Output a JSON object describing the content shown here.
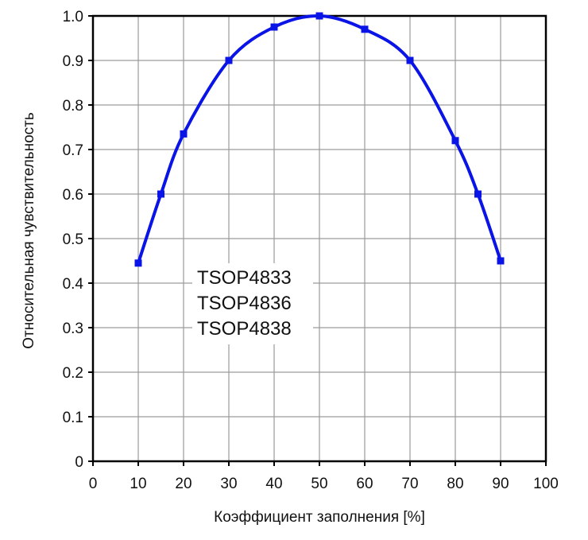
{
  "chart_data": {
    "type": "line",
    "xlabel": "Коэффициент заполнения [%]",
    "ylabel": "Относительная чувствительность",
    "xlim": [
      0,
      100
    ],
    "ylim": [
      0,
      1.0
    ],
    "xticks": [
      "0",
      "10",
      "20",
      "30",
      "40",
      "50",
      "60",
      "70",
      "80",
      "90",
      "100"
    ],
    "yticks": [
      "0",
      "0.1",
      "0.2",
      "0.3",
      "0.4",
      "0.5",
      "0.6",
      "0.7",
      "0.8",
      "0.9",
      "1.0"
    ],
    "grid": true,
    "series": [
      {
        "x": [
          10,
          15,
          20,
          30,
          40,
          50,
          60,
          70,
          80,
          85,
          90
        ],
        "y": [
          0.445,
          0.6,
          0.735,
          0.9,
          0.975,
          1.0,
          0.97,
          0.9,
          0.72,
          0.6,
          0.45
        ],
        "color": "#0a14e6",
        "marker": "square"
      }
    ],
    "annotation_lines": [
      "TSOP4833",
      "TSOP4836",
      "TSOP4838"
    ]
  }
}
